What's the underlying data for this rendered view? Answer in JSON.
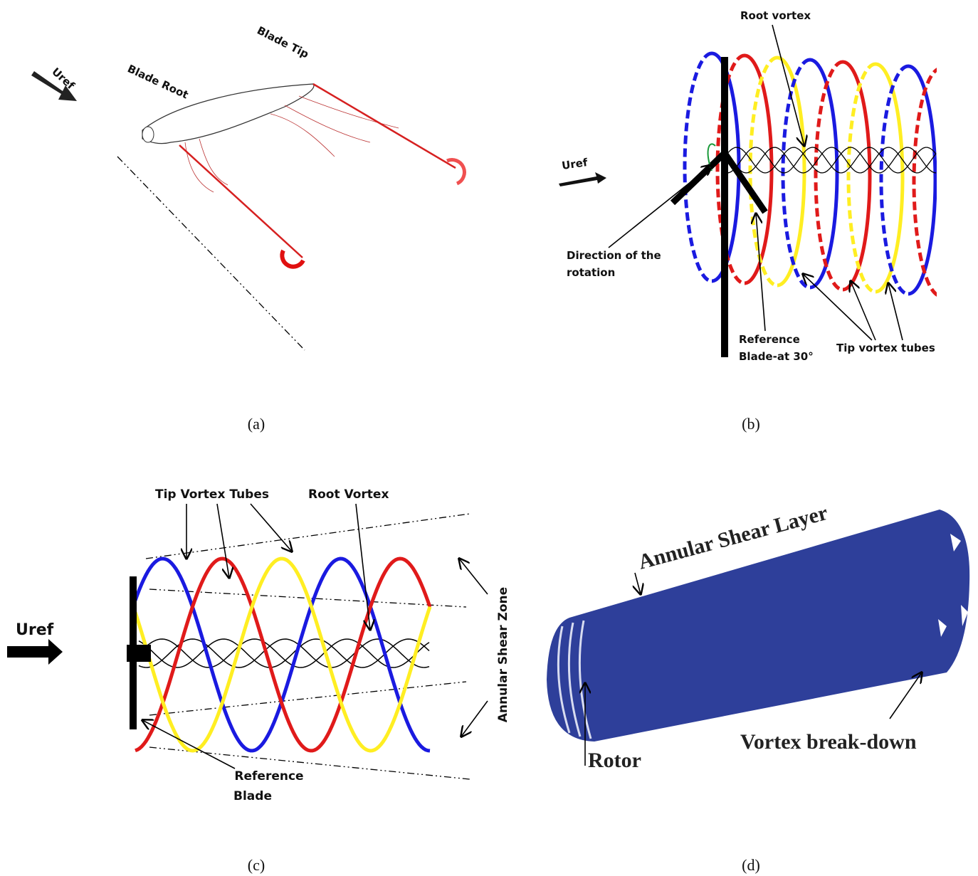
{
  "panels": [
    {
      "caption": "(a)",
      "labels": {
        "flow": "Uref",
        "blade_root": "Blade Root",
        "blade_tip": "Blade Tip"
      }
    },
    {
      "caption": "(b)",
      "labels": {
        "root_vortex": "Root vortex",
        "flow": "Uref",
        "rotation": [
          "Direction of the",
          "rotation"
        ],
        "reference_blade": [
          "Reference",
          "Blade-at 30°"
        ],
        "tip_vortex": "Tip vortex tubes"
      }
    },
    {
      "caption": "(c)",
      "labels": {
        "tip_vortex": "Tip Vortex Tubes",
        "root_vortex": "Root Vortex",
        "flow": "Uref",
        "shear_zone": "Annular Shear Zone",
        "reference_blade": [
          "Reference",
          "Blade"
        ]
      }
    },
    {
      "caption": "(d)",
      "labels": {
        "shear_layer": "Annular Shear Layer",
        "rotor": "Rotor",
        "breakdown": "Vortex break-down"
      }
    }
  ]
}
